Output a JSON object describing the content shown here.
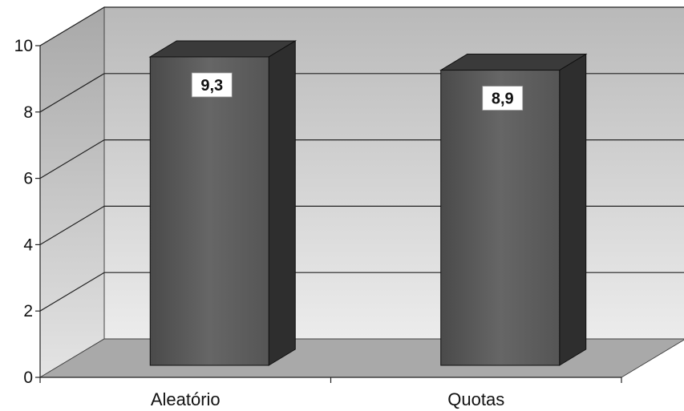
{
  "chart_data": {
    "type": "bar",
    "categories": [
      "Aleatório",
      "Quotas"
    ],
    "values": [
      9.3,
      8.9
    ],
    "data_labels": [
      "9,3",
      "8,9"
    ],
    "title": "",
    "xlabel": "",
    "ylabel": "",
    "ylim": [
      0,
      10
    ],
    "yticks": [
      "0",
      "2",
      "4",
      "6",
      "8",
      "10"
    ],
    "three_d": true,
    "grid": true,
    "legend": "none",
    "colors": {
      "bar_front": "#595959",
      "bar_side": "#2e2e2e",
      "bar_top": "#3a3a3a",
      "back_wall": "#d4d4d4",
      "side_wall": "#c6c6c6",
      "floor": "#a9a9a9",
      "gridline": "#222222"
    }
  }
}
